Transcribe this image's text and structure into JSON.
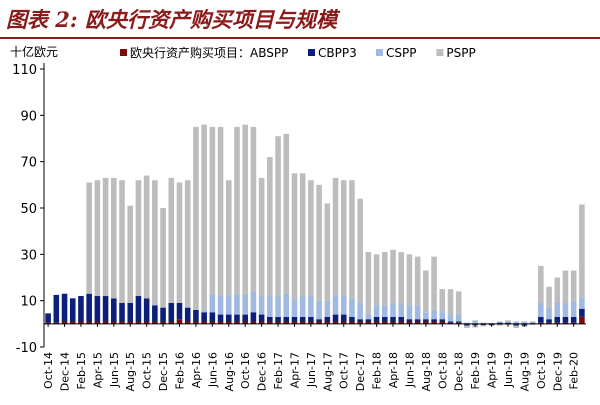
{
  "figure": {
    "title": "图表 2: 欧央行资产购买项目与规模",
    "accent_color": "#8b1a1a"
  },
  "chart_data": {
    "type": "bar",
    "stacked": true,
    "title": "",
    "ylabel": "十亿欧元",
    "xlabel": "",
    "ylim": [
      -10,
      110
    ],
    "yticks": [
      -10,
      10,
      30,
      50,
      70,
      90,
      110
    ],
    "grid": false,
    "legend_position": "top",
    "legend_prefix": "欧央行资产购买项目：",
    "categories": [
      "Oct-14",
      "Nov-14",
      "Dec-14",
      "Jan-15",
      "Feb-15",
      "Mar-15",
      "Apr-15",
      "May-15",
      "Jun-15",
      "Jul-15",
      "Aug-15",
      "Sep-15",
      "Oct-15",
      "Nov-15",
      "Dec-15",
      "Jan-16",
      "Feb-16",
      "Mar-16",
      "Apr-16",
      "May-16",
      "Jun-16",
      "Jul-16",
      "Aug-16",
      "Sep-16",
      "Oct-16",
      "Nov-16",
      "Dec-16",
      "Jan-17",
      "Feb-17",
      "Mar-17",
      "Apr-17",
      "May-17",
      "Jun-17",
      "Jul-17",
      "Aug-17",
      "Sep-17",
      "Oct-17",
      "Nov-17",
      "Dec-17",
      "Jan-18",
      "Feb-18",
      "Mar-18",
      "Apr-18",
      "May-18",
      "Jun-18",
      "Jul-18",
      "Aug-18",
      "Sep-18",
      "Oct-18",
      "Nov-18",
      "Dec-18",
      "Jan-19",
      "Feb-19",
      "Mar-19",
      "Apr-19",
      "May-19",
      "Jun-19",
      "Jul-19",
      "Aug-19",
      "Sep-19",
      "Oct-19",
      "Nov-19",
      "Dec-19",
      "Jan-20",
      "Feb-20",
      "Mar-20"
    ],
    "tick_labels": [
      "Oct-14",
      "Dec-14",
      "Feb-15",
      "Apr-15",
      "Jun-15",
      "Aug-15",
      "Oct-15",
      "Dec-15",
      "Feb-16",
      "Apr-16",
      "Jun-16",
      "Aug-16",
      "Oct-16",
      "Dec-16",
      "Feb-17",
      "Apr-17",
      "Jun-17",
      "Aug-17",
      "Oct-17",
      "Dec-17",
      "Feb-18",
      "Apr-18",
      "Jun-18",
      "Aug-18",
      "Oct-18",
      "Dec-18",
      "Feb-19",
      "Apr-19",
      "Jun-19",
      "Aug-19",
      "Oct-19",
      "Dec-19",
      "Feb-20"
    ],
    "series": [
      {
        "name": "ABSPP",
        "color": "#7a0c0c",
        "values": [
          0.5,
          0.5,
          1,
          1,
          1,
          1,
          1,
          1,
          1,
          1,
          1,
          1,
          1,
          1,
          1,
          1,
          2,
          1,
          1,
          1,
          1,
          1,
          1,
          1,
          1,
          1,
          1,
          1,
          1,
          1,
          1,
          1,
          1,
          1,
          1,
          1,
          1,
          1,
          1,
          1,
          1,
          1,
          1,
          1,
          1,
          1,
          1,
          1,
          1,
          0.5,
          0.5,
          -0.3,
          -0.3,
          -0.3,
          -0.3,
          -0.3,
          -0.3,
          -0.3,
          -0.3,
          -0.3,
          0.5,
          0.5,
          0.5,
          0.5,
          0.5,
          3
        ]
      },
      {
        "name": "CBPP3",
        "color": "#0c1f7a",
        "values": [
          4,
          12,
          12,
          10,
          11,
          12,
          11,
          11,
          10,
          8,
          8,
          11,
          10,
          7,
          6,
          8,
          7,
          6,
          5,
          4,
          4,
          3,
          3,
          3,
          3,
          4,
          3,
          2,
          2,
          2,
          2,
          2,
          2,
          1,
          2,
          3,
          3,
          2,
          1,
          1,
          2,
          2,
          2,
          2,
          1,
          1,
          1,
          1,
          1,
          0.5,
          0.5,
          -0.5,
          -0.3,
          -0.3,
          -0.3,
          0.5,
          0.5,
          -0.5,
          -0.5,
          0.3,
          2.5,
          1.5,
          2.5,
          2.5,
          2.5,
          3.5
        ]
      },
      {
        "name": "CSPP",
        "color": "#9fb9e0",
        "values": [
          0,
          0,
          0,
          0,
          0,
          0,
          0,
          0,
          0,
          0,
          0,
          0,
          0,
          0,
          0,
          0,
          0,
          0,
          0,
          1,
          8,
          8,
          8,
          9,
          9,
          9,
          8,
          9,
          9,
          10,
          8,
          9,
          9,
          8,
          7,
          8,
          8,
          8,
          7,
          2,
          5,
          5,
          6,
          6,
          6,
          6,
          3,
          4,
          3,
          3,
          3,
          0.5,
          1.5,
          0.5,
          0.3,
          0.5,
          0.5,
          1,
          1,
          0.5,
          6,
          5,
          6,
          6,
          7,
          5
        ]
      },
      {
        "name": "PSPP",
        "color": "#bdbdbd",
        "values": [
          0,
          0,
          0,
          0,
          0,
          48,
          50,
          51,
          52,
          53,
          42,
          50,
          53,
          54,
          43,
          54,
          52,
          55,
          79,
          80,
          72,
          73,
          50,
          72,
          73,
          71,
          51,
          60,
          69,
          69,
          54,
          53,
          50,
          50,
          42,
          51,
          50,
          51,
          45,
          27,
          22,
          23,
          23,
          22,
          22,
          21,
          18,
          23,
          10,
          11,
          10,
          -1,
          -1,
          -0.5,
          -0.3,
          -0.5,
          0.5,
          -1,
          -0.5,
          0.3,
          16,
          9,
          11,
          14,
          13,
          40
        ]
      }
    ]
  }
}
